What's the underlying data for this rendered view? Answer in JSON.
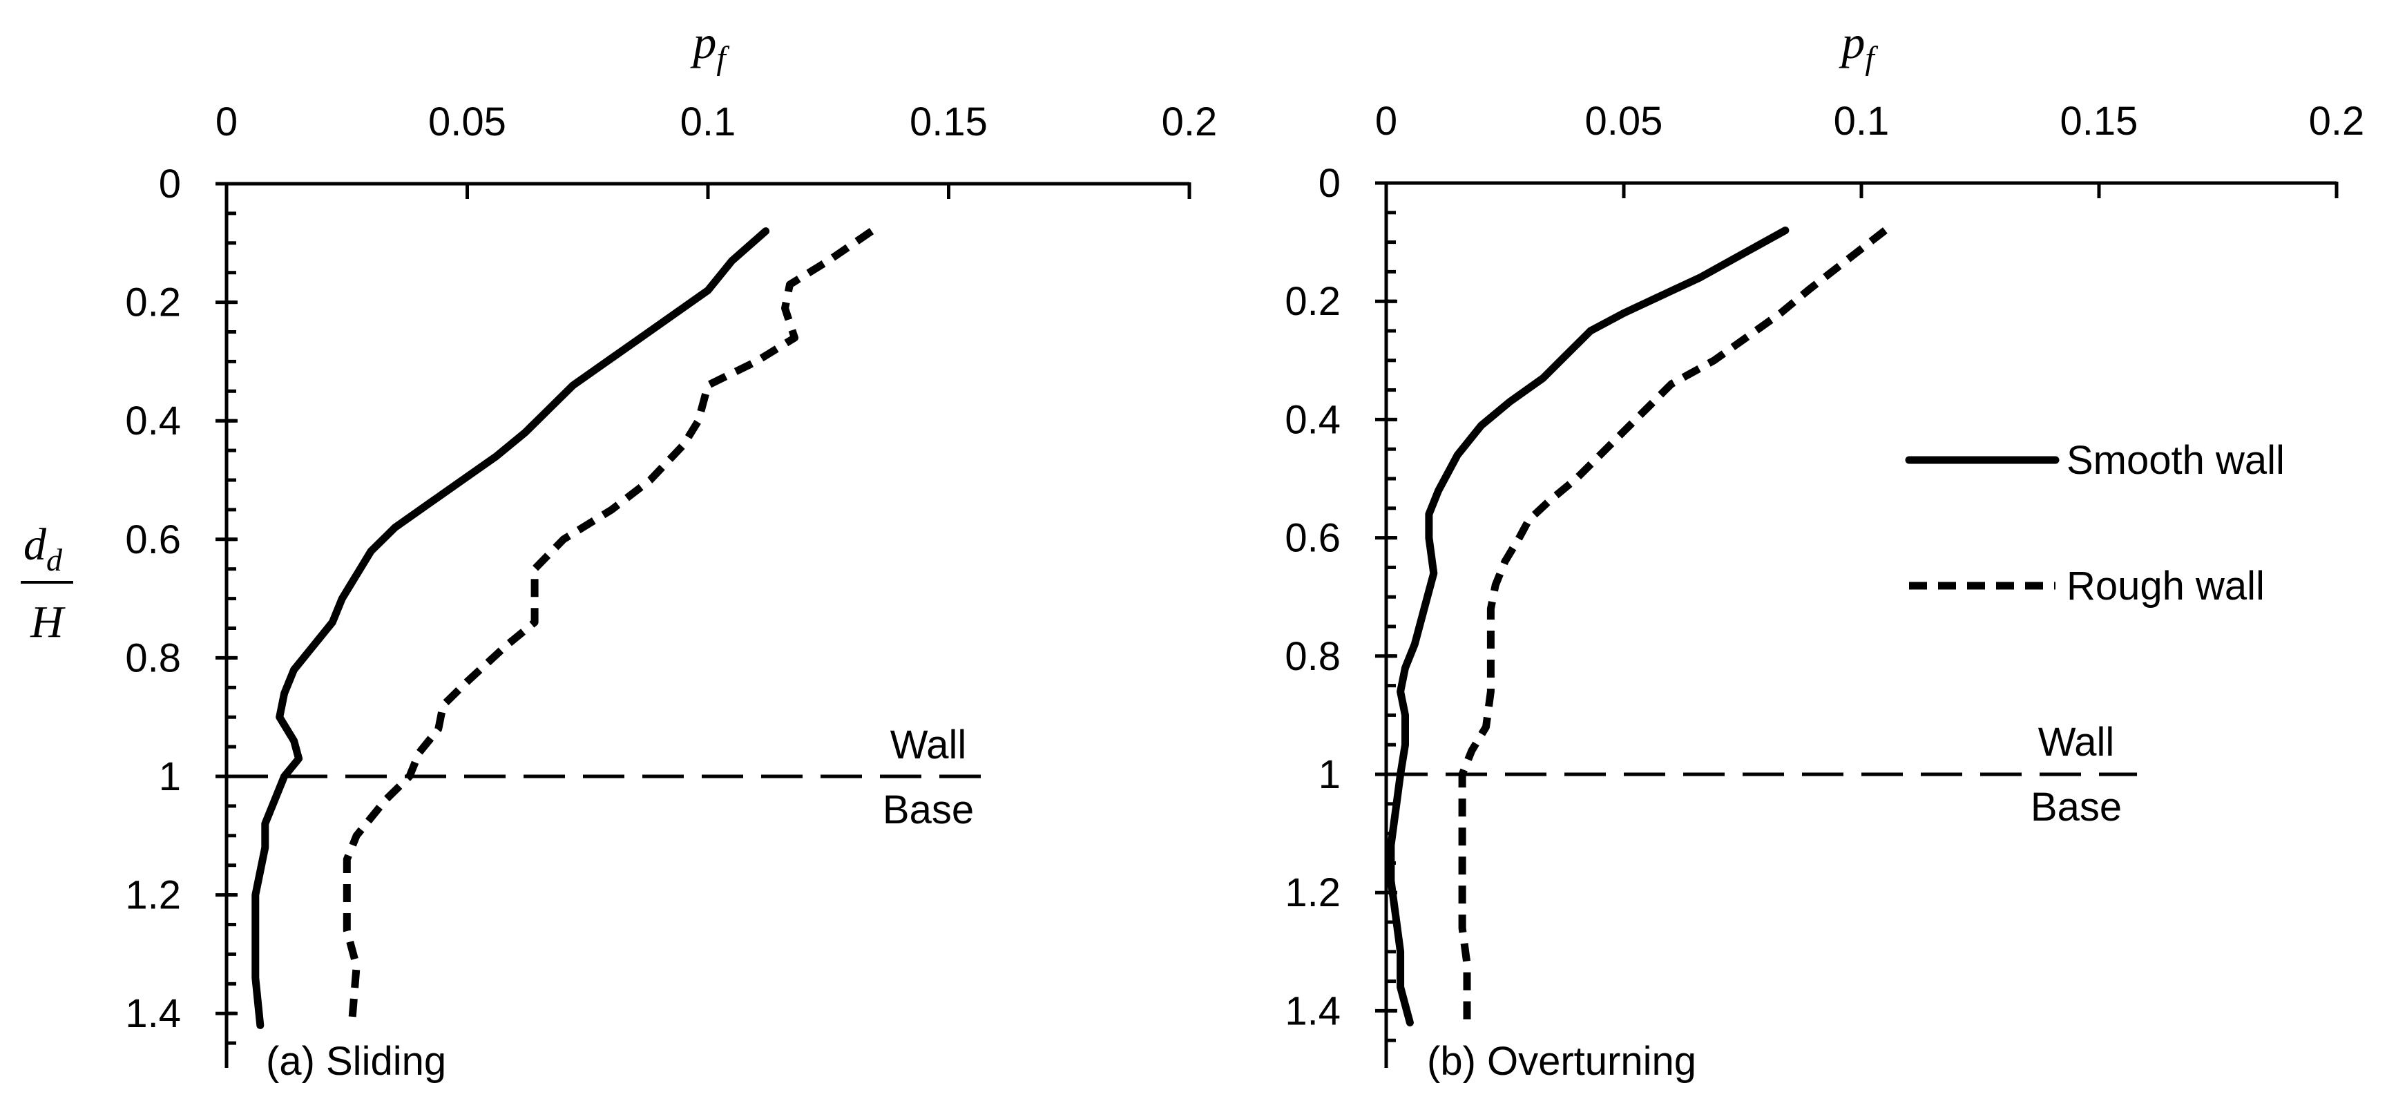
{
  "chart_data": [
    {
      "type": "line",
      "panel_id": "a",
      "xlabel": {
        "base": "p",
        "sub": "f"
      },
      "ylabel": {
        "numerator_base": "d",
        "numerator_sub": "d",
        "denominator": "H"
      },
      "xlim": [
        0,
        0.2
      ],
      "ylim": [
        0,
        1.5
      ],
      "x_ticks": [
        0,
        0.05,
        0.1,
        0.15,
        0.2
      ],
      "x_tick_labels": [
        "0",
        "0.05",
        "0.1",
        "0.15",
        "0.2"
      ],
      "y_ticks": [
        0,
        0.2,
        0.4,
        0.6,
        0.8,
        1,
        1.2,
        1.4
      ],
      "y_tick_labels": [
        "0",
        "0.2",
        "0.4",
        "0.6",
        "0.8",
        "1",
        "1.2",
        "1.4"
      ],
      "annotation": "(a) Sliding",
      "reference_line": {
        "y": 1.0,
        "x_end": 0.158,
        "label_above": "Wall",
        "label_below": "Base"
      },
      "series": [
        {
          "name": "Smooth wall",
          "style": "solid",
          "points": [
            [
              0.112,
              0.08
            ],
            [
              0.105,
              0.13
            ],
            [
              0.1,
              0.18
            ],
            [
              0.093,
              0.22
            ],
            [
              0.086,
              0.26
            ],
            [
              0.079,
              0.3
            ],
            [
              0.072,
              0.34
            ],
            [
              0.067,
              0.38
            ],
            [
              0.062,
              0.42
            ],
            [
              0.056,
              0.46
            ],
            [
              0.049,
              0.5
            ],
            [
              0.042,
              0.54
            ],
            [
              0.035,
              0.58
            ],
            [
              0.03,
              0.62
            ],
            [
              0.027,
              0.66
            ],
            [
              0.024,
              0.7
            ],
            [
              0.022,
              0.74
            ],
            [
              0.018,
              0.78
            ],
            [
              0.014,
              0.82
            ],
            [
              0.012,
              0.86
            ],
            [
              0.011,
              0.9
            ],
            [
              0.014,
              0.94
            ],
            [
              0.015,
              0.97
            ],
            [
              0.012,
              1.0
            ],
            [
              0.01,
              1.04
            ],
            [
              0.008,
              1.08
            ],
            [
              0.008,
              1.12
            ],
            [
              0.007,
              1.16
            ],
            [
              0.006,
              1.2
            ],
            [
              0.006,
              1.26
            ],
            [
              0.006,
              1.34
            ],
            [
              0.007,
              1.42
            ]
          ]
        },
        {
          "name": "Rough wall",
          "style": "dashed",
          "points": [
            [
              0.134,
              0.08
            ],
            [
              0.125,
              0.13
            ],
            [
              0.117,
              0.17
            ],
            [
              0.116,
              0.21
            ],
            [
              0.118,
              0.26
            ],
            [
              0.11,
              0.3
            ],
            [
              0.1,
              0.34
            ],
            [
              0.098,
              0.4
            ],
            [
              0.095,
              0.44
            ],
            [
              0.088,
              0.5
            ],
            [
              0.08,
              0.55
            ],
            [
              0.07,
              0.6
            ],
            [
              0.064,
              0.65
            ],
            [
              0.064,
              0.7
            ],
            [
              0.064,
              0.74
            ],
            [
              0.058,
              0.78
            ],
            [
              0.05,
              0.84
            ],
            [
              0.045,
              0.88
            ],
            [
              0.044,
              0.92
            ],
            [
              0.04,
              0.96
            ],
            [
              0.038,
              1.0
            ],
            [
              0.033,
              1.04
            ],
            [
              0.03,
              1.07
            ],
            [
              0.027,
              1.1
            ],
            [
              0.025,
              1.14
            ],
            [
              0.025,
              1.2
            ],
            [
              0.025,
              1.26
            ],
            [
              0.027,
              1.32
            ],
            [
              0.026,
              1.42
            ]
          ]
        }
      ]
    },
    {
      "type": "line",
      "panel_id": "b",
      "xlabel": {
        "base": "p",
        "sub": "f"
      },
      "xlim": [
        0,
        0.2
      ],
      "ylim": [
        0,
        1.5
      ],
      "x_ticks": [
        0,
        0.05,
        0.1,
        0.15,
        0.2
      ],
      "x_tick_labels": [
        "0",
        "0.05",
        "0.1",
        "0.15",
        "0.2"
      ],
      "y_ticks": [
        0,
        0.2,
        0.4,
        0.6,
        0.8,
        1,
        1.2,
        1.4
      ],
      "y_tick_labels": [
        "0",
        "0.2",
        "0.4",
        "0.6",
        "0.8",
        "1",
        "1.2",
        "1.4"
      ],
      "annotation": "(b) Overturning",
      "reference_line": {
        "y": 1.0,
        "x_end": 0.158,
        "label_above": "Wall",
        "label_below": "Base"
      },
      "legend": {
        "position": "right",
        "entries": [
          "Smooth wall",
          "Rough wall"
        ]
      },
      "series": [
        {
          "name": "Smooth wall",
          "style": "solid",
          "points": [
            [
              0.084,
              0.08
            ],
            [
              0.075,
              0.12
            ],
            [
              0.066,
              0.16
            ],
            [
              0.058,
              0.19
            ],
            [
              0.05,
              0.22
            ],
            [
              0.043,
              0.25
            ],
            [
              0.038,
              0.29
            ],
            [
              0.033,
              0.33
            ],
            [
              0.026,
              0.37
            ],
            [
              0.02,
              0.41
            ],
            [
              0.015,
              0.46
            ],
            [
              0.011,
              0.52
            ],
            [
              0.009,
              0.56
            ],
            [
              0.009,
              0.6
            ],
            [
              0.01,
              0.66
            ],
            [
              0.008,
              0.72
            ],
            [
              0.006,
              0.78
            ],
            [
              0.004,
              0.82
            ],
            [
              0.003,
              0.86
            ],
            [
              0.004,
              0.9
            ],
            [
              0.004,
              0.95
            ],
            [
              0.003,
              1.0
            ],
            [
              0.002,
              1.06
            ],
            [
              0.001,
              1.12
            ],
            [
              0.001,
              1.18
            ],
            [
              0.002,
              1.24
            ],
            [
              0.003,
              1.3
            ],
            [
              0.003,
              1.36
            ],
            [
              0.005,
              1.42
            ]
          ]
        },
        {
          "name": "Rough wall",
          "style": "dashed",
          "points": [
            [
              0.105,
              0.08
            ],
            [
              0.097,
              0.13
            ],
            [
              0.089,
              0.18
            ],
            [
              0.083,
              0.22
            ],
            [
              0.076,
              0.26
            ],
            [
              0.069,
              0.3
            ],
            [
              0.06,
              0.34
            ],
            [
              0.055,
              0.38
            ],
            [
              0.05,
              0.42
            ],
            [
              0.045,
              0.46
            ],
            [
              0.04,
              0.5
            ],
            [
              0.034,
              0.54
            ],
            [
              0.03,
              0.57
            ],
            [
              0.028,
              0.6
            ],
            [
              0.025,
              0.64
            ],
            [
              0.023,
              0.68
            ],
            [
              0.022,
              0.72
            ],
            [
              0.022,
              0.8
            ],
            [
              0.022,
              0.86
            ],
            [
              0.021,
              0.92
            ],
            [
              0.018,
              0.96
            ],
            [
              0.016,
              1.0
            ],
            [
              0.016,
              1.06
            ],
            [
              0.016,
              1.12
            ],
            [
              0.016,
              1.2
            ],
            [
              0.016,
              1.26
            ],
            [
              0.017,
              1.32
            ],
            [
              0.017,
              1.42
            ]
          ]
        }
      ]
    }
  ],
  "legend_labels": {
    "smooth": "Smooth wall",
    "rough": "Rough wall"
  }
}
